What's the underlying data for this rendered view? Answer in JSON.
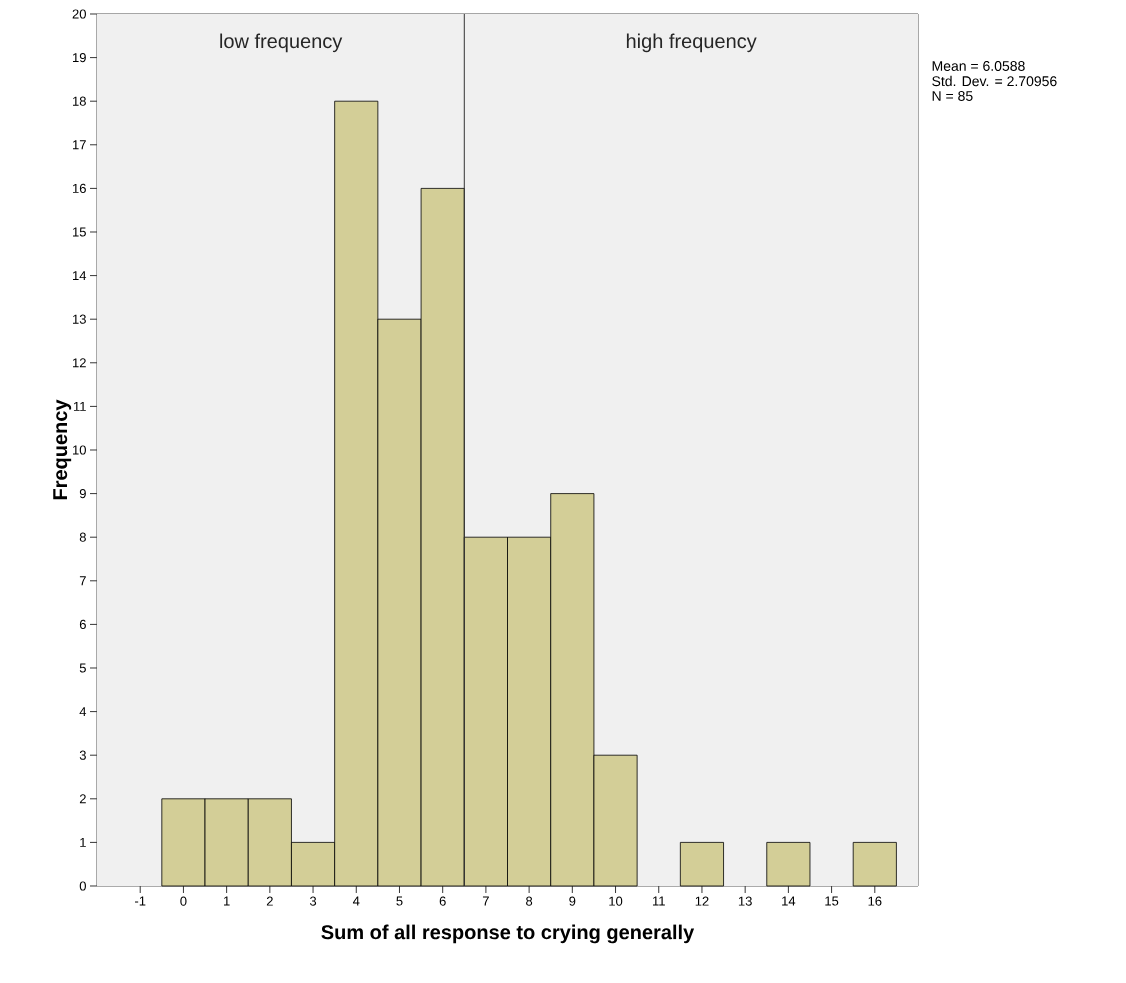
{
  "chart_data": {
    "type": "histogram",
    "xlabel": "Sum of all response to crying generally",
    "ylabel": "Frequency",
    "bins": [
      -0.5,
      0.5,
      1.5,
      2.5,
      3.5,
      4.5,
      5.5,
      6.5,
      7.5,
      8.5,
      9.5,
      10.5,
      11.5,
      12.5,
      13.5,
      14.5,
      15.5,
      16.5
    ],
    "values": [
      2,
      2,
      2,
      1,
      18,
      13,
      16,
      8,
      8,
      9,
      3,
      0,
      1,
      0,
      1,
      0,
      1
    ],
    "color": "#d3ce97",
    "xlim": [
      -2,
      17
    ],
    "xticks": [
      -1,
      0,
      1,
      2,
      3,
      4,
      5,
      6,
      7,
      8,
      9,
      10,
      11,
      12,
      13,
      14,
      15,
      16
    ],
    "ylim": [
      0,
      20
    ],
    "yticks": [
      0,
      1,
      2,
      3,
      4,
      5,
      6,
      7,
      8,
      9,
      10,
      11,
      12,
      13,
      14,
      15,
      16,
      17,
      18,
      19,
      20
    ],
    "ref_lines": [
      {
        "axis": "x",
        "value": 6.5,
        "color": "#333333"
      }
    ],
    "bands": [
      {
        "axis": "x",
        "from": -2,
        "to": 6.5,
        "label": "low frequency",
        "color": "#f0f0f0"
      },
      {
        "axis": "x",
        "from": 6.5,
        "to": 17,
        "label": "high frequency",
        "color": "#f0f0f0"
      }
    ],
    "annotations": [
      "Mean = 6.0588",
      "Std. Dev. = 2.70956",
      "N = 85"
    ]
  }
}
